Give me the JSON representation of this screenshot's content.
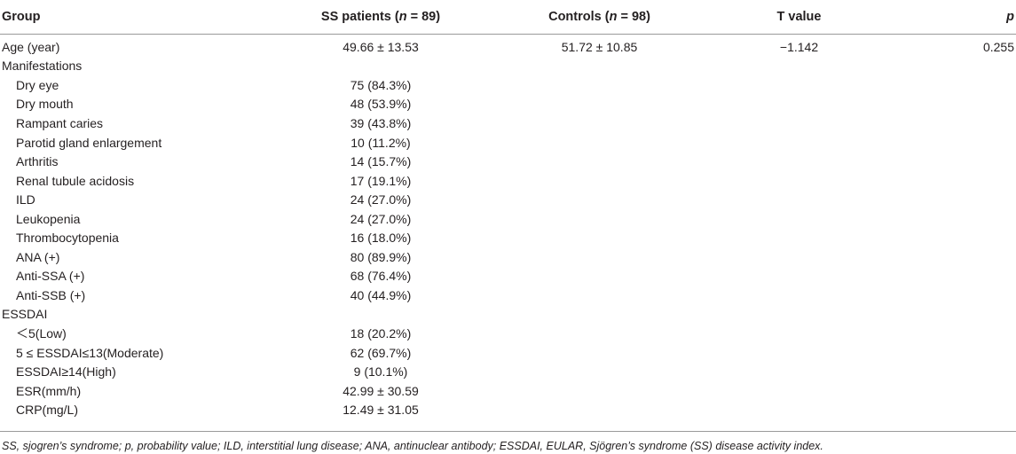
{
  "header": {
    "group": "Group",
    "ss_prefix": "SS patients (",
    "ss_n": "n",
    "ss_suffix": " = 89)",
    "ctrl_prefix": "Controls (",
    "ctrl_n": "n",
    "ctrl_suffix": " = 98)",
    "t_value": "T value",
    "p": "p"
  },
  "rows": [
    {
      "label": "Age (year)",
      "ss": "49.66 ± 13.53",
      "ctrl": "51.72 ± 10.85",
      "t": "−1.142",
      "p": "0.255",
      "indent": false
    },
    {
      "label": "Manifestations",
      "ss": "",
      "ctrl": "",
      "t": "",
      "p": "",
      "indent": false
    },
    {
      "label": "Dry eye",
      "ss": "75 (84.3%)",
      "ctrl": "",
      "t": "",
      "p": "",
      "indent": true
    },
    {
      "label": "Dry mouth",
      "ss": "48 (53.9%)",
      "ctrl": "",
      "t": "",
      "p": "",
      "indent": true
    },
    {
      "label": "Rampant caries",
      "ss": "39 (43.8%)",
      "ctrl": "",
      "t": "",
      "p": "",
      "indent": true
    },
    {
      "label": "Parotid gland enlargement",
      "ss": "10 (11.2%)",
      "ctrl": "",
      "t": "",
      "p": "",
      "indent": true
    },
    {
      "label": "Arthritis",
      "ss": "14 (15.7%)",
      "ctrl": "",
      "t": "",
      "p": "",
      "indent": true
    },
    {
      "label": "Renal tubule acidosis",
      "ss": "17 (19.1%)",
      "ctrl": "",
      "t": "",
      "p": "",
      "indent": true
    },
    {
      "label": "ILD",
      "ss": "24 (27.0%)",
      "ctrl": "",
      "t": "",
      "p": "",
      "indent": true
    },
    {
      "label": "Leukopenia",
      "ss": "24 (27.0%)",
      "ctrl": "",
      "t": "",
      "p": "",
      "indent": true
    },
    {
      "label": "Thrombocytopenia",
      "ss": "16 (18.0%)",
      "ctrl": "",
      "t": "",
      "p": "",
      "indent": true
    },
    {
      "label": "ANA (+)",
      "ss": "80 (89.9%)",
      "ctrl": "",
      "t": "",
      "p": "",
      "indent": true
    },
    {
      "label": "Anti-SSA (+)",
      "ss": "68 (76.4%)",
      "ctrl": "",
      "t": "",
      "p": "",
      "indent": true
    },
    {
      "label": "Anti-SSB (+)",
      "ss": "40 (44.9%)",
      "ctrl": "",
      "t": "",
      "p": "",
      "indent": true
    },
    {
      "label": "ESSDAI",
      "ss": "",
      "ctrl": "",
      "t": "",
      "p": "",
      "indent": false
    },
    {
      "label": "＜5(Low)",
      "ss": "18 (20.2%)",
      "ctrl": "",
      "t": "",
      "p": "",
      "indent": true
    },
    {
      "label": "5 ≤ ESSDAI≤13(Moderate)",
      "ss": "62 (69.7%)",
      "ctrl": "",
      "t": "",
      "p": "",
      "indent": true
    },
    {
      "label": "ESSDAI≥14(High)",
      "ss": "9 (10.1%)",
      "ctrl": "",
      "t": "",
      "p": "",
      "indent": true
    },
    {
      "label": "ESR(mm/h)",
      "ss": "42.99 ± 30.59",
      "ctrl": "",
      "t": "",
      "p": "",
      "indent": true
    },
    {
      "label": "CRP(mg/L)",
      "ss": "12.49 ± 31.05",
      "ctrl": "",
      "t": "",
      "p": "",
      "indent": true
    }
  ],
  "footnote": "SS, sjogren’s syndrome; p, probability value; ILD, interstitial lung disease; ANA, antinuclear antibody; ESSDAI, EULAR, Sjögren’s syndrome (SS) disease activity index."
}
